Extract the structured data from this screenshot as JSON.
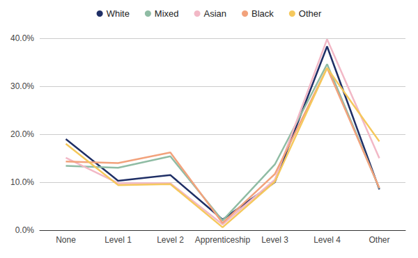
{
  "chart_data": {
    "type": "line",
    "categories": [
      "None",
      "Level 1",
      "Level 2",
      "Apprenticeship",
      "Level 3",
      "Level 4",
      "Other"
    ],
    "series": [
      {
        "name": "White",
        "color": "#1f2f66",
        "values": [
          19.0,
          10.3,
          11.5,
          2.2,
          10.0,
          38.3,
          8.5
        ]
      },
      {
        "name": "Mixed",
        "color": "#8fbca4",
        "values": [
          13.4,
          13.0,
          15.4,
          2.0,
          13.7,
          34.6,
          8.7
        ]
      },
      {
        "name": "Asian",
        "color": "#f2b8c6",
        "values": [
          15.1,
          9.8,
          9.8,
          1.2,
          10.5,
          39.8,
          15.0
        ]
      },
      {
        "name": "Black",
        "color": "#f2a27c",
        "values": [
          14.3,
          14.0,
          16.2,
          1.5,
          11.7,
          33.8,
          8.8
        ]
      },
      {
        "name": "Other",
        "color": "#f5c85c",
        "values": [
          18.0,
          9.4,
          9.6,
          0.6,
          10.1,
          33.8,
          18.5
        ]
      }
    ],
    "ylim": [
      0,
      40
    ],
    "yticks": [
      {
        "value": 0,
        "label": "0.0%"
      },
      {
        "value": 10,
        "label": "10.0%"
      },
      {
        "value": 20,
        "label": "20.0%"
      },
      {
        "value": 30,
        "label": "30.0%"
      },
      {
        "value": 40,
        "label": "40.0%"
      }
    ],
    "grid": true,
    "legend": "top",
    "marker": "none"
  }
}
